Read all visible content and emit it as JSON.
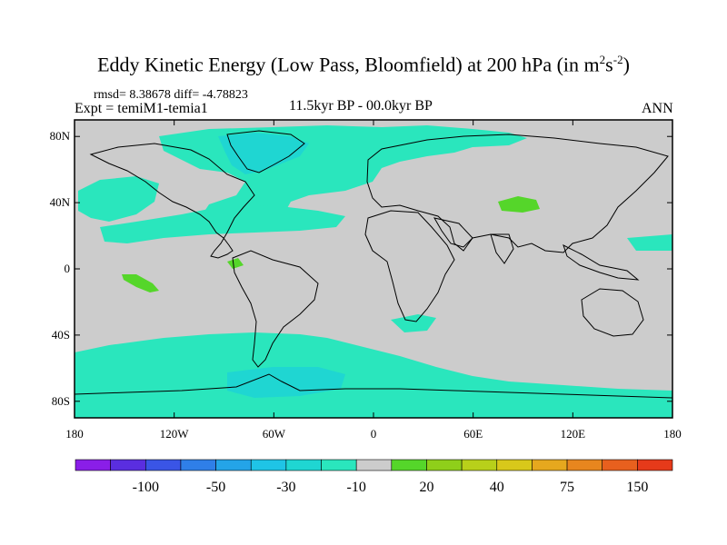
{
  "title": {
    "text": "Eddy Kinetic Energy (Low Pass, Bloomfield) at 200 hPa (in m",
    "sup1": "2",
    "mid": "s",
    "sup2": "-2",
    "close": ")"
  },
  "stats": "rmsd= 8.38678 diff= -4.78823",
  "experiment": "Expt = temiM1-temia1",
  "period": "11.5kyr BP - 00.0kyr BP",
  "season": "ANN",
  "axes": {
    "y_ticks": [
      {
        "value": 80,
        "label": "80N"
      },
      {
        "value": 40,
        "label": "40N"
      },
      {
        "value": 0,
        "label": "0"
      },
      {
        "value": -40,
        "label": "40S"
      },
      {
        "value": -80,
        "label": "80S"
      }
    ],
    "x_ticks": [
      {
        "value": -180,
        "label": "180"
      },
      {
        "value": -120,
        "label": "120W"
      },
      {
        "value": -60,
        "label": "60W"
      },
      {
        "value": 0,
        "label": "0"
      },
      {
        "value": 60,
        "label": "60E"
      },
      {
        "value": 120,
        "label": "120E"
      },
      {
        "value": 180,
        "label": "180"
      }
    ],
    "lon_range": [
      -180,
      180
    ],
    "lat_range": [
      -90,
      90
    ]
  },
  "colorbar": {
    "colors": [
      "#8a1ee8",
      "#5a2ee0",
      "#3a55e6",
      "#2f7fe8",
      "#24a4e8",
      "#1fc4e6",
      "#1fd6d2",
      "#2ae6bd",
      "#cccccc",
      "#55d62a",
      "#8fcf1a",
      "#b8d01a",
      "#d8c81a",
      "#e6a81e",
      "#e8861e",
      "#e8601e",
      "#e63a1a"
    ],
    "labels": [
      {
        "boundary": 1,
        "text": "-100"
      },
      {
        "boundary": 3,
        "text": "-50"
      },
      {
        "boundary": 5,
        "text": "-30"
      },
      {
        "boundary": 7,
        "text": "-10"
      },
      {
        "boundary": 9,
        "text": "20"
      },
      {
        "boundary": 11,
        "text": "40"
      },
      {
        "boundary": 13,
        "text": "75"
      },
      {
        "boundary": 15,
        "text": "150"
      }
    ]
  },
  "fill_colors": {
    "background": "#cccccc",
    "neg_small": "#2ae6bd",
    "neg_mid": "#1fd6d2",
    "pos_small": "#55d62a",
    "coast": "#000000"
  }
}
